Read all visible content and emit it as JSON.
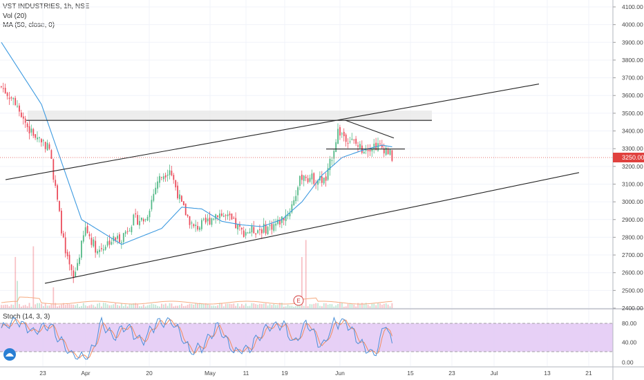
{
  "header": {
    "symbol_line": "VST INDUSTRIES, 1h, NSE",
    "vol_label": "Vol (20)",
    "ma_label": "MA (50, close, 0)",
    "stoch_label": "Stoch (14, 3, 3)"
  },
  "earnings_marker": "E",
  "colors": {
    "up": "#53b987",
    "down": "#eb4d5c",
    "ma": "#3d9ae0",
    "stoch_k": "#4a8fd8",
    "stoch_d": "#f08a5d",
    "stoch_band": "#e3c8f5",
    "last_price": "#e0413e",
    "trendline": "#222222",
    "resistance_zone": "#e9e9e9"
  },
  "chart_data": [
    {
      "type": "candlestick",
      "title": "VST INDUSTRIES, 1h, NSE",
      "ylim": [
        2400,
        4150
      ],
      "price_ticks": [
        "4100.00",
        "4000.00",
        "3900.00",
        "3800.00",
        "3700.00",
        "3600.00",
        "3500.00",
        "3400.00",
        "3300.00",
        "3200.00",
        "3100.00",
        "3000.00",
        "2900.00",
        "2800.00",
        "2700.00",
        "2600.00",
        "2500.00",
        "2400.00"
      ],
      "date_ticks": [
        "23",
        "Apr",
        "20",
        "May",
        "11",
        "19",
        "Jun",
        "15",
        "23",
        "Jul",
        "13",
        "21"
      ],
      "last_price": "3250.00",
      "price_path_keypoints": [
        [
          0,
          3650
        ],
        [
          8,
          3550
        ],
        [
          14,
          3400
        ],
        [
          20,
          3350
        ],
        [
          24,
          3300
        ],
        [
          28,
          3000
        ],
        [
          32,
          2700
        ],
        [
          36,
          2560
        ],
        [
          42,
          2850
        ],
        [
          48,
          2720
        ],
        [
          54,
          2780
        ],
        [
          60,
          2800
        ],
        [
          66,
          2900
        ],
        [
          72,
          2900
        ],
        [
          78,
          3120
        ],
        [
          84,
          3190
        ],
        [
          90,
          2980
        ],
        [
          96,
          2850
        ],
        [
          102,
          2880
        ],
        [
          108,
          2940
        ],
        [
          114,
          2900
        ],
        [
          120,
          2830
        ],
        [
          126,
          2840
        ],
        [
          132,
          2850
        ],
        [
          138,
          2880
        ],
        [
          144,
          2950
        ],
        [
          150,
          3150
        ],
        [
          156,
          3130
        ],
        [
          162,
          3120
        ],
        [
          168,
          3400
        ],
        [
          174,
          3350
        ],
        [
          180,
          3300
        ],
        [
          186,
          3320
        ],
        [
          192,
          3300
        ],
        [
          195,
          3250
        ]
      ],
      "ma_series": [
        [
          0,
          3900
        ],
        [
          20,
          3550
        ],
        [
          40,
          2900
        ],
        [
          60,
          2760
        ],
        [
          80,
          2850
        ],
        [
          90,
          2970
        ],
        [
          100,
          2960
        ],
        [
          110,
          2890
        ],
        [
          120,
          2870
        ],
        [
          130,
          2860
        ],
        [
          140,
          2900
        ],
        [
          150,
          3000
        ],
        [
          160,
          3150
        ],
        [
          170,
          3250
        ],
        [
          180,
          3290
        ],
        [
          190,
          3320
        ],
        [
          195,
          3310
        ]
      ],
      "volume_scale_max": 1
    },
    {
      "type": "line",
      "title": "Stoch (14, 3, 3)",
      "ylim": [
        0,
        100
      ],
      "ticks": [
        "80.00",
        "40.00",
        "0.00"
      ],
      "band": [
        20,
        80
      ],
      "k_keypoints": [
        [
          0,
          70
        ],
        [
          8,
          85
        ],
        [
          16,
          60
        ],
        [
          24,
          80
        ],
        [
          30,
          40
        ],
        [
          36,
          10
        ],
        [
          44,
          10
        ],
        [
          50,
          80
        ],
        [
          56,
          50
        ],
        [
          62,
          75
        ],
        [
          70,
          40
        ],
        [
          78,
          85
        ],
        [
          86,
          80
        ],
        [
          94,
          20
        ],
        [
          100,
          30
        ],
        [
          108,
          75
        ],
        [
          116,
          20
        ],
        [
          124,
          30
        ],
        [
          132,
          70
        ],
        [
          140,
          80
        ],
        [
          146,
          40
        ],
        [
          152,
          80
        ],
        [
          160,
          30
        ],
        [
          166,
          80
        ],
        [
          172,
          85
        ],
        [
          178,
          45
        ],
        [
          186,
          10
        ],
        [
          192,
          85
        ],
        [
          195,
          30
        ]
      ]
    }
  ]
}
